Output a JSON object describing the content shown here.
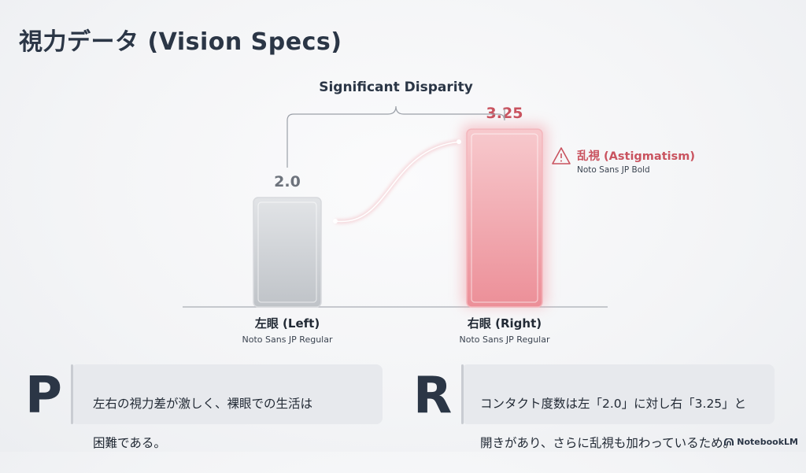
{
  "page_title": "視力データ (Vision Specs)",
  "chart_data": {
    "type": "bar",
    "title": "",
    "categories": [
      "左眼 (Left)",
      "右眼 (Right)"
    ],
    "category_sublabels": [
      "Noto Sans JP Regular",
      "Noto Sans JP Regular"
    ],
    "values": [
      2.0,
      3.25
    ],
    "value_labels": [
      "2.0",
      "3.25"
    ],
    "bar_colors": [
      "#c9ccd1",
      "#f0a4ab"
    ],
    "value_label_colors": [
      "#6d737c",
      "#c9535f"
    ],
    "bracket_label": "Significant Disparity",
    "annotation": {
      "label": "乱視 (Astigmatism)",
      "sublabel": "Noto Sans JP Bold",
      "icon": "warning-icon",
      "color": "#c9535f"
    },
    "xlabel": "",
    "ylabel": "",
    "grid": false
  },
  "points": [
    {
      "letter": "P",
      "lines": [
        "左右の視力差が激しく、裸眼での生活は",
        "困難である。"
      ]
    },
    {
      "letter": "R",
      "lines": [
        "コンタクト度数は左「2.0」に対し右「3.25」と",
        "開きがあり、さらに乱視も加わっているため。"
      ]
    }
  ],
  "watermark": "NotebookLM"
}
